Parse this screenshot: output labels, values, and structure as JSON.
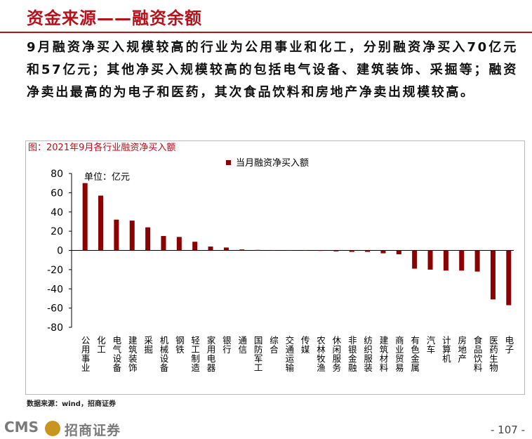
{
  "header": {
    "title": "资金来源——融资余额"
  },
  "paragraph": "9月融资净买入规模较高的行业为公用事业和化工，分别融资净买入70亿元和57亿元；其他净买入规模较高的包括电气设备、建筑装饰、采掘等；融资净卖出最高的为电子和医药，其次食品饮料和房地产净卖出规模较高。",
  "chart_data": {
    "type": "bar",
    "title": "图：2021年9月各行业融资净买入额",
    "annotation": "单位：亿元",
    "categories": [
      "公用事业",
      "化工",
      "电气设备",
      "建筑装饰",
      "采掘",
      "机械设备",
      "钢铁",
      "轻工制造",
      "家用电器",
      "银行",
      "通信",
      "国防军工",
      "综合",
      "交通运输",
      "传媒",
      "农林牧渔",
      "休闲服务",
      "非银金融",
      "纺织服装",
      "建筑材料",
      "商业贸易",
      "有色金属",
      "汽车",
      "计算机",
      "房地产",
      "食品饮料",
      "医药生物",
      "电子"
    ],
    "series": [
      {
        "name": "当月融资净买入额",
        "color": "#8b0000",
        "values": [
          70,
          57,
          32,
          31,
          24,
          15,
          14,
          9,
          4,
          3,
          1,
          0.5,
          0.3,
          0.2,
          -0.3,
          -0.5,
          -1,
          -1.5,
          -1.5,
          -3,
          -4,
          -19,
          -20,
          -21,
          -21,
          -22,
          -51,
          -57
        ]
      }
    ],
    "ylim": [
      -80,
      80
    ],
    "yticks": [
      -80,
      -60,
      -40,
      -20,
      0,
      20,
      40,
      60,
      80
    ]
  },
  "source": "数据来源：wind，招商证券",
  "footer": {
    "logo": "CMS",
    "company": "招商证券",
    "page": "- 107 -"
  }
}
